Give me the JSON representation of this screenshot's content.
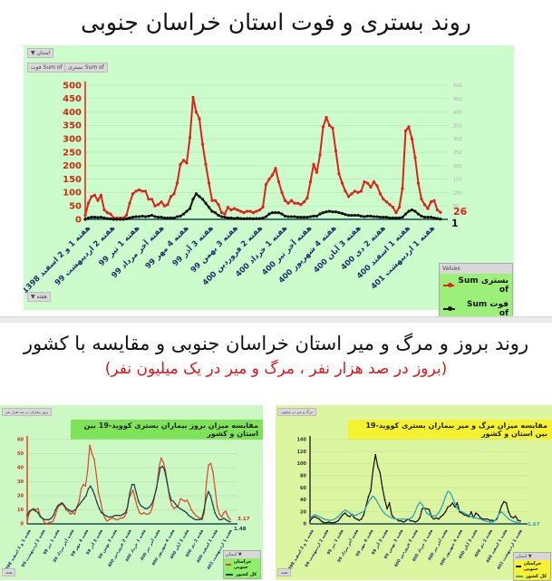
{
  "top": {
    "title": "روند بستری و فوت استان خراسان جنوبی",
    "filter_chip": "استان ▼",
    "field_chips": [
      "Sum of فوت",
      "Sum of بستری"
    ],
    "axis_chip": "هفته ▼",
    "legend": {
      "header": "Values",
      "items": [
        {
          "label": "بستری Sum of",
          "color": "#e0201b"
        },
        {
          "label": "فوت Sum of",
          "color": "#111111"
        }
      ]
    },
    "end_labels": {
      "series1": "26",
      "series2": "1"
    }
  },
  "bottom": {
    "title": "روند بروز و مرگ و میر استان خراسان جنوبی و مقایسه با کشور",
    "subtitle": "(بروز در صد هزار نفر ، مرگ و میر در یک میلیون نفر)",
    "left": {
      "chart_title": "مقایسه میزان بروز بیماران بستری کووید-19 بین استان و کشور",
      "top_chip": "بروز بیماران در صد هزار نفر",
      "bottom_chip": "هفته",
      "legend_header": "استان ▼",
      "legend": [
        {
          "label": "خراسان جنوبی",
          "color": "#e0452b"
        },
        {
          "label": "کل کشور",
          "color": "#1b3a4a"
        }
      ],
      "end_labels": {
        "series1": "3.17",
        "series2": "1.48"
      }
    },
    "right": {
      "chart_title": "مقایسه میزان مرگ و میر بیماران بستری کووید-19 بین استان و کشور",
      "top_chip": "مرگ و میر در میلیون",
      "bottom_chip": "هفته",
      "legend_header": "استان ▼",
      "legend": [
        {
          "label": "خراسان جنوبی",
          "color": "#111111"
        },
        {
          "label": "کل کشور",
          "color": "#2aa0c8"
        }
      ],
      "end_labels": {
        "series2": "1.67"
      }
    }
  },
  "chart_data": [
    {
      "type": "line",
      "title": "روند بستری و فوت استان خراسان جنوبی",
      "xlabel": "هفته",
      "ylabel": "",
      "ylim": [
        0,
        500
      ],
      "yticks": [
        0,
        50,
        100,
        150,
        200,
        250,
        300,
        350,
        400,
        450,
        500
      ],
      "grid": true,
      "legend_position": "bottom-right",
      "categories": [
        "هفته 1 و 2 اسفند 1398",
        "هفته 2 اردیبهشت 99",
        "هفته 1 تیر 99",
        "هفته آخر مرداد 99",
        "هفته 4 مهر 99",
        "هفته 3 آذر 99",
        "هفته 3 بهمن 99",
        "هفته 2 فروردین 400",
        "هفته 1 خرداد 400",
        "هفته آخر تیر 400",
        "هفته 4 شهریور 400",
        "هفته 3 آبان 400",
        "هفته 2 دی 400",
        "هفته 1 اسفند 400",
        "هفته 1 اردیبهشت 401"
      ],
      "series": [
        {
          "name": "Sum of بستری",
          "color": "#e0201b",
          "values": [
            15,
            60,
            85,
            90,
            70,
            90,
            35,
            25,
            20,
            5,
            5,
            5,
            5,
            15,
            60,
            95,
            105,
            110,
            105,
            105,
            75,
            75,
            50,
            55,
            65,
            50,
            55,
            85,
            95,
            135,
            205,
            220,
            210,
            305,
            455,
            400,
            375,
            280,
            205,
            135,
            70,
            70,
            55,
            25,
            20,
            45,
            35,
            40,
            35,
            30,
            25,
            30,
            30,
            25,
            30,
            35,
            45,
            130,
            150,
            165,
            190,
            140,
            100,
            70,
            60,
            70,
            60,
            60,
            55,
            65,
            80,
            140,
            205,
            175,
            240,
            345,
            380,
            350,
            340,
            255,
            170,
            135,
            105,
            85,
            95,
            105,
            100,
            105,
            140,
            135,
            120,
            140,
            125,
            95,
            75,
            65,
            55,
            45,
            25,
            45,
            115,
            330,
            345,
            300,
            230,
            135,
            75,
            55,
            40,
            65,
            70,
            35,
            26
          ]
        },
        {
          "name": "Sum of فوت",
          "color": "#111111",
          "values": [
            0,
            5,
            8,
            8,
            7,
            8,
            5,
            3,
            2,
            0,
            0,
            0,
            0,
            2,
            5,
            8,
            10,
            10,
            12,
            10,
            12,
            15,
            10,
            8,
            8,
            5,
            5,
            5,
            5,
            10,
            12,
            20,
            30,
            40,
            75,
            95,
            85,
            75,
            60,
            45,
            30,
            25,
            15,
            10,
            8,
            5,
            5,
            3,
            5,
            3,
            2,
            3,
            3,
            2,
            3,
            3,
            5,
            10,
            20,
            25,
            25,
            25,
            20,
            12,
            10,
            10,
            10,
            8,
            8,
            8,
            8,
            10,
            12,
            12,
            20,
            25,
            28,
            30,
            28,
            28,
            25,
            22,
            18,
            15,
            15,
            15,
            15,
            12,
            10,
            12,
            12,
            10,
            10,
            8,
            8,
            8,
            5,
            5,
            5,
            5,
            8,
            20,
            30,
            35,
            30,
            20,
            12,
            8,
            8,
            8,
            5,
            3,
            1
          ]
        }
      ]
    },
    {
      "type": "line",
      "title": "مقایسه میزان بروز بیماران بستری کووید-19 بین استان و کشور",
      "ylim": [
        0,
        60
      ],
      "yticks": [
        0,
        10,
        20,
        30,
        40,
        50,
        60
      ],
      "grid": true,
      "legend_position": "bottom-right",
      "series": [
        {
          "name": "خراسان جنوبی",
          "color": "#e0452b",
          "values": [
            2,
            8,
            10,
            11,
            10,
            11,
            6,
            4,
            1,
            0,
            1,
            1,
            2,
            6,
            11,
            13,
            14,
            13,
            10,
            9,
            7,
            8,
            7,
            12,
            16,
            25,
            28,
            27,
            38,
            56,
            50,
            46,
            35,
            22,
            16,
            8,
            4,
            2,
            3,
            4,
            4,
            3,
            3,
            4,
            4,
            5,
            8,
            18,
            21,
            24,
            18,
            12,
            8,
            7,
            8,
            7,
            7,
            8,
            12,
            20,
            26,
            40,
            47,
            44,
            38,
            28,
            18,
            13,
            11,
            12,
            13,
            18,
            17,
            16,
            17,
            14,
            10,
            8,
            6,
            5,
            4,
            3,
            8,
            30,
            42,
            43,
            37,
            25,
            12,
            7,
            5,
            8,
            9,
            5,
            3.17
          ]
        },
        {
          "name": "کل کشور",
          "color": "#1b3a4a",
          "values": [
            6,
            9,
            10,
            10,
            9,
            8,
            5,
            4,
            3,
            3,
            3,
            4,
            6,
            10,
            13,
            14,
            15,
            13,
            11,
            10,
            9,
            9,
            10,
            12,
            14,
            16,
            18,
            20,
            25,
            27,
            24,
            20,
            15,
            11,
            8,
            7,
            6,
            5,
            5,
            5,
            6,
            6,
            6,
            6,
            7,
            8,
            12,
            22,
            28,
            28,
            22,
            16,
            13,
            12,
            11,
            11,
            12,
            14,
            18,
            24,
            32,
            40,
            41,
            38,
            30,
            22,
            17,
            16,
            14,
            12,
            11,
            10,
            9,
            8,
            6,
            5,
            4,
            3,
            3,
            3,
            4,
            10,
            18,
            23,
            20,
            14,
            8,
            5,
            3,
            3,
            4,
            3,
            2,
            1.48
          ]
        }
      ]
    },
    {
      "type": "line",
      "title": "مقایسه میزان مرگ و میر بیماران بستری کووید-19 بین استان و کشور",
      "ylim": [
        0,
        140
      ],
      "yticks": [
        0,
        20,
        40,
        60,
        80,
        100,
        120,
        140
      ],
      "grid": true,
      "legend_position": "bottom-right",
      "series": [
        {
          "name": "خراسان جنوبی",
          "color": "#111111",
          "values": [
            5,
            10,
            12,
            10,
            8,
            4,
            2,
            2,
            3,
            2,
            2,
            3,
            5,
            10,
            15,
            18,
            14,
            12,
            16,
            10,
            8,
            6,
            8,
            15,
            30,
            45,
            55,
            90,
            115,
            95,
            85,
            60,
            40,
            25,
            35,
            15,
            10,
            8,
            5,
            5,
            3,
            5,
            8,
            5,
            5,
            3,
            5,
            10,
            25,
            26,
            25,
            24,
            12,
            8,
            10,
            8,
            12,
            15,
            20,
            28,
            30,
            35,
            28,
            35,
            20,
            18,
            15,
            14,
            12,
            20,
            10,
            18,
            15,
            10,
            8,
            8,
            8,
            6,
            6,
            5,
            8,
            18,
            30,
            37,
            35,
            20,
            12,
            10,
            13,
            6,
            5
          ]
        },
        {
          "name": "کل کشور",
          "color": "#2aa0c8",
          "values": [
            8,
            13,
            15,
            14,
            12,
            10,
            8,
            7,
            6,
            6,
            7,
            9,
            12,
            16,
            20,
            23,
            21,
            18,
            15,
            14,
            15,
            17,
            19,
            20,
            28,
            36,
            42,
            46,
            42,
            35,
            28,
            22,
            17,
            14,
            12,
            10,
            9,
            8,
            8,
            8,
            8,
            8,
            8,
            9,
            12,
            20,
            30,
            36,
            32,
            25,
            18,
            15,
            14,
            13,
            14,
            18,
            25,
            34,
            45,
            54,
            52,
            44,
            34,
            26,
            22,
            20,
            18,
            16,
            14,
            12,
            11,
            10,
            9,
            8,
            6,
            5,
            4,
            3,
            3,
            5,
            10,
            17,
            20,
            16,
            12,
            8,
            6,
            4,
            3,
            2,
            1.67
          ]
        }
      ]
    }
  ]
}
